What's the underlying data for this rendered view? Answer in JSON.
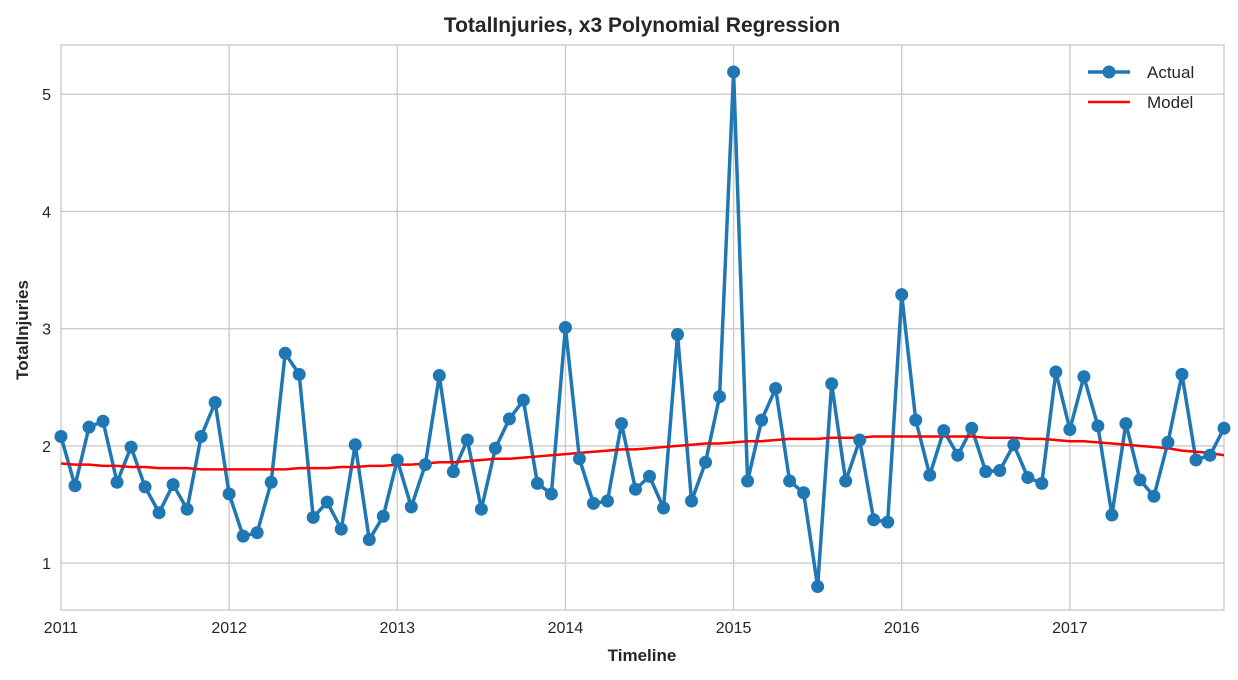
{
  "chart_data": {
    "type": "line",
    "title": "TotalInjuries, x3 Polynomial Regression",
    "xlabel": "Timeline",
    "ylabel": "TotalInjuries",
    "x_start": "2011-01",
    "x_frequency": "monthly",
    "xlim": [
      2011.0,
      2017.9167
    ],
    "ylim": [
      0.6,
      5.42
    ],
    "xticks": [
      2011,
      2012,
      2013,
      2014,
      2015,
      2016,
      2017
    ],
    "xtick_labels": [
      "2011",
      "2012",
      "2013",
      "2014",
      "2015",
      "2016",
      "2017"
    ],
    "yticks": [
      1,
      2,
      3,
      4,
      5
    ],
    "ytick_labels": [
      "1",
      "2",
      "3",
      "4",
      "5"
    ],
    "grid": true,
    "legend_position": "top-right",
    "series": [
      {
        "name": "Actual",
        "color": "#1f77b4",
        "marker": "circle",
        "values": [
          2.08,
          1.66,
          2.16,
          2.21,
          1.69,
          1.99,
          1.65,
          1.43,
          1.67,
          1.46,
          2.08,
          2.37,
          1.59,
          1.23,
          1.26,
          1.69,
          2.79,
          2.61,
          1.39,
          1.52,
          1.29,
          2.01,
          1.2,
          1.4,
          1.88,
          1.48,
          1.84,
          2.6,
          1.78,
          2.05,
          1.46,
          1.98,
          2.23,
          2.39,
          1.68,
          1.59,
          3.01,
          1.89,
          1.51,
          1.53,
          2.19,
          1.63,
          1.74,
          1.47,
          2.95,
          1.53,
          1.86,
          2.42,
          5.19,
          1.7,
          2.22,
          2.49,
          1.7,
          1.6,
          0.8,
          2.53,
          1.7,
          2.05,
          1.37,
          1.35,
          3.29,
          2.22,
          1.75,
          2.13,
          1.92,
          2.15,
          1.78,
          1.79,
          2.01,
          1.73,
          1.68,
          2.63,
          2.14,
          2.59,
          2.17,
          1.41,
          2.19,
          1.71,
          1.57,
          2.03,
          2.61,
          1.88,
          1.92,
          2.15
        ]
      },
      {
        "name": "Model",
        "color": "#ff0000",
        "marker": "none",
        "values": [
          1.85,
          1.84,
          1.84,
          1.83,
          1.83,
          1.82,
          1.82,
          1.81,
          1.81,
          1.81,
          1.8,
          1.8,
          1.8,
          1.8,
          1.8,
          1.8,
          1.8,
          1.81,
          1.81,
          1.81,
          1.82,
          1.82,
          1.83,
          1.83,
          1.84,
          1.84,
          1.85,
          1.86,
          1.86,
          1.87,
          1.88,
          1.89,
          1.89,
          1.9,
          1.91,
          1.92,
          1.93,
          1.94,
          1.95,
          1.96,
          1.97,
          1.97,
          1.98,
          1.99,
          2.0,
          2.01,
          2.02,
          2.02,
          2.03,
          2.04,
          2.04,
          2.05,
          2.06,
          2.06,
          2.06,
          2.07,
          2.07,
          2.07,
          2.08,
          2.08,
          2.08,
          2.08,
          2.08,
          2.08,
          2.08,
          2.08,
          2.07,
          2.07,
          2.07,
          2.06,
          2.06,
          2.05,
          2.04,
          2.04,
          2.03,
          2.02,
          2.01,
          2.0,
          1.99,
          1.98,
          1.96,
          1.95,
          1.94,
          1.92
        ]
      }
    ]
  }
}
